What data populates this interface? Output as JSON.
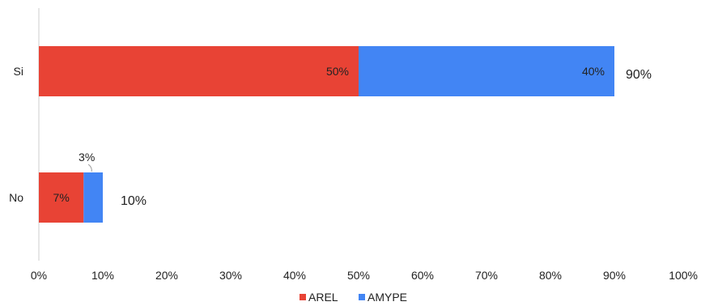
{
  "chart_data": {
    "type": "bar",
    "orientation": "horizontal",
    "stacked": true,
    "categories": [
      "Si",
      "No"
    ],
    "series": [
      {
        "name": "AREL",
        "values": [
          50,
          7
        ],
        "labels": [
          "50%",
          "7%"
        ],
        "color": "#e84335"
      },
      {
        "name": "AMYPE",
        "values": [
          40,
          3
        ],
        "labels": [
          "40%",
          "3%"
        ],
        "color": "#4285f4"
      }
    ],
    "totals": [
      "90%",
      "10%"
    ],
    "xlim": [
      0,
      100
    ],
    "xticks": [
      0,
      10,
      20,
      30,
      40,
      50,
      60,
      70,
      80,
      90,
      100
    ],
    "xtick_labels": [
      "0%",
      "10%",
      "20%",
      "30%",
      "40%",
      "50%",
      "60%",
      "70%",
      "80%",
      "90%",
      "100%"
    ],
    "grid": false,
    "legend_position": "bottom"
  }
}
